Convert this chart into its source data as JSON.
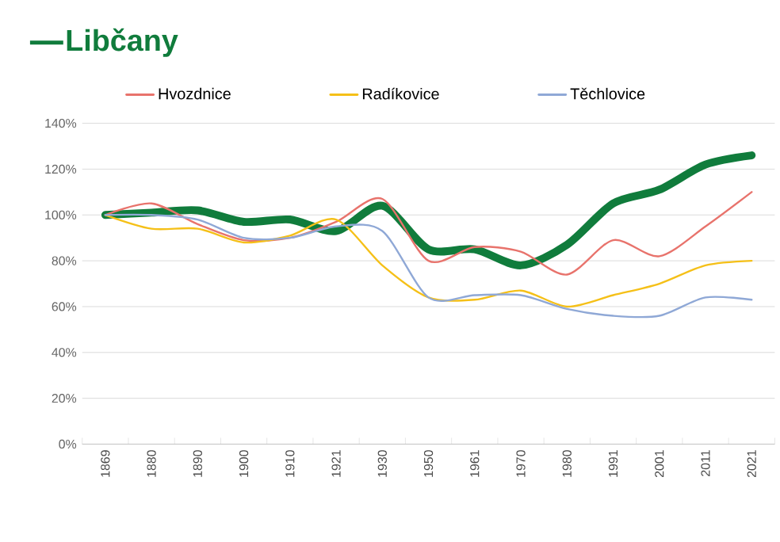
{
  "chart_data": {
    "type": "line",
    "categories": [
      "1869",
      "1880",
      "1890",
      "1900",
      "1910",
      "1921",
      "1930",
      "1950",
      "1961",
      "1970",
      "1980",
      "1991",
      "2001",
      "2011",
      "2021"
    ],
    "series": [
      {
        "name": "Libčany",
        "color": "#107c3c",
        "values": [
          100,
          101,
          102,
          97,
          98,
          93,
          104,
          85,
          85,
          78,
          87,
          105,
          111,
          122,
          126
        ]
      },
      {
        "name": "Hvozdnice",
        "color": "#e8736c",
        "values": [
          100,
          105,
          96,
          89,
          90,
          97,
          107,
          80,
          86,
          84,
          74,
          89,
          82,
          95,
          110
        ]
      },
      {
        "name": "Radíkovice",
        "color": "#f5c018",
        "values": [
          100,
          94,
          94,
          88,
          91,
          98,
          78,
          64,
          63,
          67,
          60,
          65,
          70,
          78,
          80
        ]
      },
      {
        "name": "Těchlovice",
        "color": "#8fa8d6",
        "values": [
          100,
          100,
          98,
          90,
          90,
          95,
          93,
          64,
          65,
          65,
          59,
          56,
          56,
          64,
          63
        ]
      }
    ],
    "ylim": [
      0,
      140
    ],
    "yticks": [
      {
        "value": 0,
        "label": "0%"
      },
      {
        "value": 20,
        "label": "20%"
      },
      {
        "value": 40,
        "label": "40%"
      },
      {
        "value": 60,
        "label": "60%"
      },
      {
        "value": 80,
        "label": "80%"
      },
      {
        "value": 100,
        "label": "100%"
      },
      {
        "value": 120,
        "label": "120%"
      },
      {
        "value": 140,
        "label": "140%"
      }
    ],
    "grid": "y",
    "legend": "top"
  }
}
